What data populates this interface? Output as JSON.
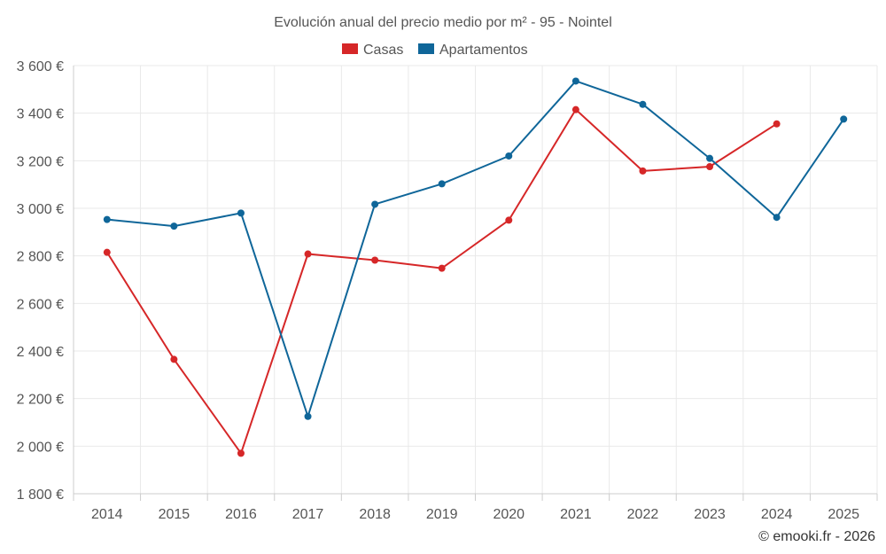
{
  "chart_data": {
    "type": "line",
    "title": "Evolución anual del precio medio por m² - 95 - Nointel",
    "credit": "© emooki.fr - 2026",
    "categories": [
      "2014",
      "2015",
      "2016",
      "2017",
      "2018",
      "2019",
      "2020",
      "2021",
      "2022",
      "2023",
      "2024",
      "2025"
    ],
    "ylim": [
      1800,
      3600
    ],
    "yticks": [
      1800,
      2000,
      2200,
      2400,
      2600,
      2800,
      3000,
      3200,
      3400,
      3600
    ],
    "ytick_labels": [
      "1 800 €",
      "2 000 €",
      "2 200 €",
      "2 400 €",
      "2 600 €",
      "2 800 €",
      "3 000 €",
      "3 200 €",
      "3 400 €",
      "3 600 €"
    ],
    "grid": true,
    "legend_position": "top-center",
    "series": [
      {
        "name": "Casas",
        "color": "#d62728",
        "values": [
          2815,
          2365,
          1970,
          2808,
          2782,
          2748,
          2950,
          3415,
          3157,
          3175,
          3355,
          null
        ]
      },
      {
        "name": "Apartamentos",
        "color": "#0f6699",
        "values": [
          2953,
          2925,
          2980,
          2125,
          3017,
          3103,
          3220,
          3535,
          3437,
          3210,
          2962,
          3375
        ]
      }
    ]
  }
}
